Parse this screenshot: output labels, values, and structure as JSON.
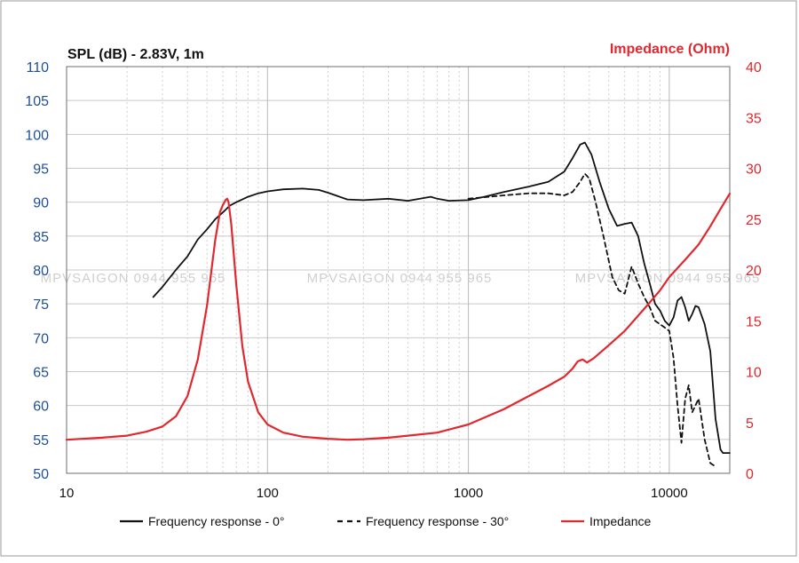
{
  "chart_data": {
    "type": "line",
    "title_left": "SPL (dB) - 2.83V, 1m",
    "title_right": "Impedance (Ohm)",
    "x_scale": "log",
    "xlim": [
      10,
      20000
    ],
    "x_ticks": [
      10,
      100,
      1000,
      10000
    ],
    "x_tick_labels": [
      "10",
      "100",
      "1000",
      "10000"
    ],
    "y_left": {
      "range": [
        50,
        110
      ],
      "ticks": [
        110,
        105,
        100,
        95,
        90,
        85,
        80,
        75,
        70,
        65,
        60,
        55,
        50
      ],
      "tick_labels": [
        "110",
        "105",
        "100",
        "95",
        "90",
        "85",
        "80",
        "75",
        "70",
        "65",
        "60",
        "55",
        "50"
      ],
      "color": "#1f4e99"
    },
    "y_right": {
      "range": [
        0,
        40
      ],
      "ticks": [
        40,
        35,
        30,
        25,
        20,
        15,
        10,
        5,
        0
      ],
      "tick_labels": [
        "40",
        "35",
        "30",
        "25",
        "20",
        "15",
        "10",
        "5",
        "0"
      ],
      "color": "#e0282e"
    },
    "grid": true,
    "legend_position": "bottom",
    "watermark": "MPVSAIGON 0944 955 965",
    "series": [
      {
        "name": "Frequency response - 0°",
        "axis": "left",
        "color": "#111111",
        "style": "solid",
        "x": [
          27,
          30,
          35,
          40,
          45,
          50,
          55,
          60,
          65,
          70,
          80,
          90,
          100,
          120,
          150,
          180,
          200,
          250,
          300,
          400,
          500,
          650,
          700,
          800,
          1000,
          1200,
          1500,
          2000,
          2500,
          3000,
          3300,
          3600,
          3800,
          4100,
          4500,
          5000,
          5500,
          6000,
          6500,
          7000,
          7500,
          8000,
          8500,
          9000,
          9500,
          10000,
          10500,
          11000,
          11500,
          12000,
          12500,
          13000,
          13500,
          14000,
          15000,
          16000,
          17000,
          18000,
          18500,
          19000,
          20000
        ],
        "y": [
          76,
          77.5,
          80,
          82,
          84.5,
          86,
          87.5,
          88.5,
          89.5,
          90,
          90.8,
          91.3,
          91.6,
          91.9,
          92,
          91.8,
          91.4,
          90.4,
          90.3,
          90.5,
          90.2,
          90.8,
          90.5,
          90.2,
          90.3,
          90.8,
          91.5,
          92.3,
          93,
          94.5,
          96.5,
          98.5,
          98.8,
          97,
          93,
          89,
          86.5,
          86.8,
          87,
          85,
          81,
          78,
          75,
          74,
          72.5,
          71.8,
          73,
          75.5,
          76,
          74.5,
          72.5,
          73.5,
          74.7,
          74.5,
          72,
          68,
          58,
          53.5,
          53,
          53,
          53
        ]
      },
      {
        "name": "Frequency response - 30°",
        "axis": "left",
        "color": "#111111",
        "style": "dashed",
        "x": [
          1000,
          1500,
          2000,
          2500,
          3000,
          3300,
          3600,
          3800,
          4000,
          4300,
          4700,
          5200,
          5600,
          6000,
          6500,
          7000,
          7500,
          8000,
          8500,
          9000,
          9500,
          10000,
          10500,
          11000,
          11500,
          12000,
          12500,
          13000,
          14000,
          15000,
          16000,
          17000
        ],
        "y": [
          90.5,
          91,
          91.3,
          91.3,
          91,
          91.5,
          93,
          94.2,
          93.5,
          90,
          85,
          79,
          77,
          76.5,
          80.5,
          78,
          76,
          74.5,
          72.5,
          72,
          71.5,
          71,
          67,
          60,
          54.5,
          61,
          63,
          59,
          61,
          55,
          51.5,
          51
        ]
      },
      {
        "name": "Impedance",
        "axis": "right",
        "color": "#e0282e",
        "style": "solid",
        "x": [
          10,
          15,
          20,
          25,
          30,
          35,
          40,
          45,
          50,
          55,
          58,
          60,
          62,
          63,
          64,
          66,
          70,
          75,
          80,
          90,
          100,
          120,
          150,
          200,
          250,
          300,
          400,
          500,
          700,
          1000,
          1500,
          2000,
          2500,
          3000,
          3300,
          3500,
          3700,
          3900,
          4200,
          5000,
          6000,
          7000,
          8000,
          9000,
          10000,
          12000,
          14000,
          16000,
          18000,
          20000
        ],
        "y": [
          3.3,
          3.5,
          3.7,
          4.1,
          4.6,
          5.6,
          7.6,
          11.2,
          16.5,
          23,
          25.7,
          26.4,
          26.9,
          27,
          26.7,
          24.5,
          18.5,
          12.5,
          9,
          6,
          4.8,
          4,
          3.6,
          3.4,
          3.3,
          3.35,
          3.5,
          3.7,
          4,
          4.8,
          6.3,
          7.6,
          8.6,
          9.5,
          10.3,
          11,
          11.2,
          10.9,
          11.3,
          12.6,
          14,
          15.5,
          16.8,
          18,
          19.3,
          21,
          22.5,
          24.3,
          26,
          27.5
        ]
      }
    ]
  }
}
